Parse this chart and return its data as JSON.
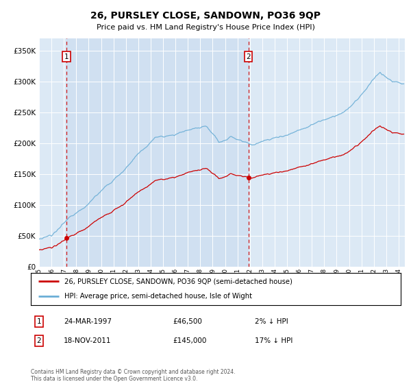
{
  "title": "26, PURSLEY CLOSE, SANDOWN, PO36 9QP",
  "subtitle": "Price paid vs. HM Land Registry's House Price Index (HPI)",
  "legend_line1": "26, PURSLEY CLOSE, SANDOWN, PO36 9QP (semi-detached house)",
  "legend_line2": "HPI: Average price, semi-detached house, Isle of Wight",
  "purchase1_date": "24-MAR-1997",
  "purchase1_year": 1997.22,
  "purchase1_price": 46500,
  "purchase1_label": "2% ↓ HPI",
  "purchase2_date": "18-NOV-2011",
  "purchase2_year": 2011.88,
  "purchase2_price": 145000,
  "purchase2_label": "17% ↓ HPI",
  "footer": "Contains HM Land Registry data © Crown copyright and database right 2024.\nThis data is licensed under the Open Government Licence v3.0.",
  "hpi_color": "#6baed6",
  "price_color": "#cc0000",
  "background_chart": "#dce9f5",
  "background_fig": "#ffffff",
  "shade_color": "#c5d9ef",
  "ylim": [
    0,
    370000
  ],
  "xlim_start": 1995.0,
  "xlim_end": 2024.5
}
